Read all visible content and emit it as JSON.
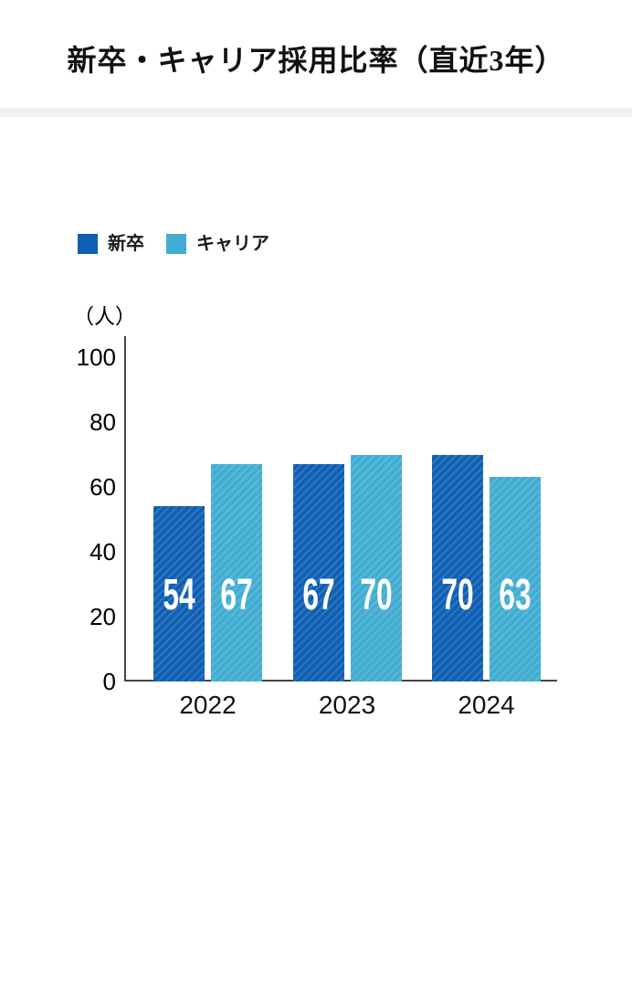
{
  "header": {
    "title": "新卒・キャリア採用比率（直近3年）"
  },
  "colors": {
    "series1": "#0f5fb4",
    "series2": "#41add2",
    "divider": "#f0f0f0",
    "axis": "#454545",
    "value_label": "#ffffff"
  },
  "chart_data": {
    "type": "bar",
    "title": "新卒・キャリア採用比率（直近3年）",
    "unit_label": "（人）",
    "categories": [
      "2022",
      "2023",
      "2024"
    ],
    "series": [
      {
        "name": "新卒",
        "color": "#0f5fb4",
        "values": [
          54,
          67,
          70
        ]
      },
      {
        "name": "キャリア",
        "color": "#41add2",
        "values": [
          67,
          70,
          63
        ]
      }
    ],
    "ylim": [
      0,
      100
    ],
    "yticks": [
      0,
      20,
      40,
      60,
      80,
      100
    ],
    "grid": false,
    "legend_position": "top-left",
    "bar_hatch": "diagonal-stripes",
    "value_labels": "inside-bar-white"
  }
}
